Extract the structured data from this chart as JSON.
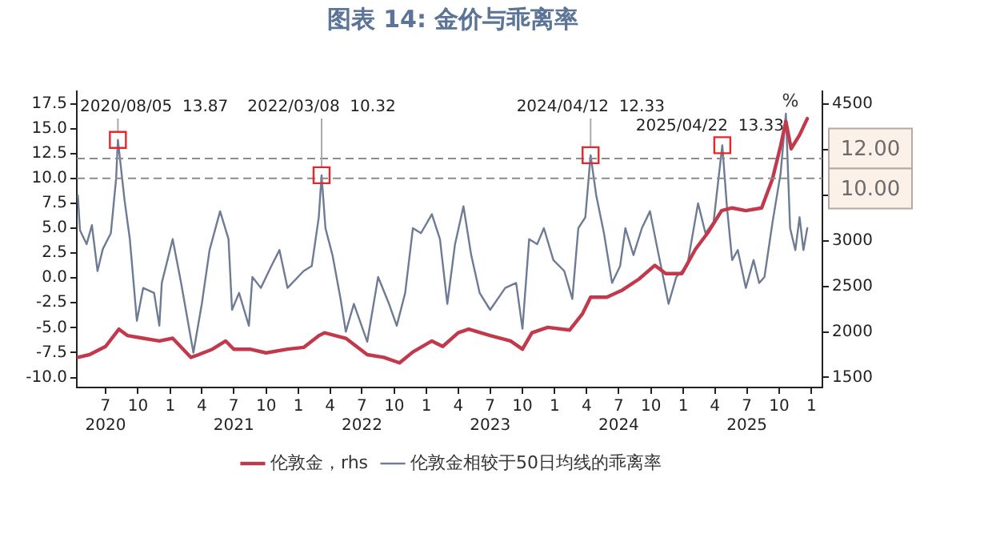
{
  "chart_data": {
    "type": "line",
    "title": "图表 14: 金价与乖离率",
    "xlim": [
      "2020-04-10",
      "2026-02-01"
    ],
    "xticks": [
      {
        "value": "2020-07",
        "label": "7\n2020"
      },
      {
        "value": "2020-10",
        "label": "10"
      },
      {
        "value": "2021-01",
        "label": "1"
      },
      {
        "value": "2021-04",
        "label": "4"
      },
      {
        "value": "2021-07",
        "label": "7\n2021"
      },
      {
        "value": "2021-10",
        "label": "10"
      },
      {
        "value": "2022-01",
        "label": "1"
      },
      {
        "value": "2022-04",
        "label": "4"
      },
      {
        "value": "2022-07",
        "label": "7\n2022"
      },
      {
        "value": "2022-10",
        "label": "10"
      },
      {
        "value": "2023-01",
        "label": "1"
      },
      {
        "value": "2023-04",
        "label": "4"
      },
      {
        "value": "2023-07",
        "label": "7\n2023"
      },
      {
        "value": "2023-10",
        "label": "10"
      },
      {
        "value": "2024-01",
        "label": "1"
      },
      {
        "value": "2024-04",
        "label": "4"
      },
      {
        "value": "2024-07",
        "label": "7\n2024"
      },
      {
        "value": "2024-10",
        "label": "10"
      },
      {
        "value": "2025-01",
        "label": "1"
      },
      {
        "value": "2025-04",
        "label": "4"
      },
      {
        "value": "2025-07",
        "label": "7\n2025"
      },
      {
        "value": "2025-10",
        "label": "10"
      },
      {
        "value": "2026-01",
        "label": "1"
      }
    ],
    "ylim": [
      -11,
      18.75
    ],
    "yticks": [
      {
        "value": -10,
        "label": "-10.0"
      },
      {
        "value": -7.5,
        "label": "-7.5"
      },
      {
        "value": -5,
        "label": "-5.0"
      },
      {
        "value": -2.5,
        "label": "-2.5"
      },
      {
        "value": 0,
        "label": "0.0"
      },
      {
        "value": 2.5,
        "label": "2.5"
      },
      {
        "value": 5,
        "label": "5.0"
      },
      {
        "value": 7.5,
        "label": "7.5"
      },
      {
        "value": 10,
        "label": "10.0"
      },
      {
        "value": 12.5,
        "label": "12.5"
      },
      {
        "value": 15,
        "label": "15.0"
      },
      {
        "value": 17.5,
        "label": "17.5"
      }
    ],
    "y2lim": [
      1390,
      4640
    ],
    "y2ticks": [
      1500,
      2000,
      2500,
      3000,
      {
        "value": 3500,
        "label": null
      },
      {
        "value": 4000,
        "label": null
      },
      4500
    ],
    "grid": false,
    "legend": "bottom",
    "marker": "none",
    "series": [
      {
        "name": "伦敦金，rhs",
        "color": "#c2394c",
        "axis": "y2",
        "x": [
          "2020-04-13",
          "2020-05-16",
          "2020-07-01",
          "2020-08-08",
          "2020-09-01",
          "2020-10-16",
          "2020-12-01",
          "2021-01-08",
          "2021-03-01",
          "2021-03-23",
          "2021-05-01",
          "2021-06-08",
          "2021-07-01",
          "2021-08-16",
          "2021-10-01",
          "2021-12-01",
          "2022-01-16",
          "2022-03-01",
          "2022-03-16",
          "2022-05-16",
          "2022-07-16",
          "2022-09-01",
          "2022-10-16",
          "2022-11-23",
          "2023-01-16",
          "2023-02-16",
          "2023-04-01",
          "2023-05-01",
          "2023-07-01",
          "2023-08-28",
          "2023-10-01",
          "2023-10-28",
          "2023-12-12",
          "2024-02-12",
          "2024-03-20",
          "2024-04-12",
          "2024-05-28",
          "2024-07-12",
          "2024-08-28",
          "2024-10-12",
          "2024-11-12",
          "2024-12-28",
          "2025-02-05",
          "2025-03-12",
          "2025-04-20",
          "2025-05-20",
          "2025-06-28",
          "2025-08-12",
          "2025-09-12",
          "2025-10-05",
          "2025-10-20",
          "2025-11-04",
          "2025-11-28",
          "2025-12-20"
        ],
        "values": [
          1720,
          1750,
          1840,
          2030,
          1960,
          1930,
          1900,
          1930,
          1720,
          1750,
          1810,
          1900,
          1810,
          1810,
          1770,
          1810,
          1830,
          1960,
          1990,
          1930,
          1750,
          1720,
          1660,
          1780,
          1900,
          1840,
          1990,
          2030,
          1960,
          1900,
          1810,
          1990,
          2050,
          2020,
          2200,
          2380,
          2380,
          2460,
          2580,
          2730,
          2640,
          2640,
          2910,
          3090,
          3330,
          3360,
          3330,
          3360,
          3680,
          4040,
          4310,
          4010,
          4160,
          4340
        ]
      },
      {
        "name": "伦敦金相较于50日均线的乖离率",
        "color": "#6e7b95",
        "x": [
          "2020-04-13",
          "2020-04-19",
          "2020-05-08",
          "2020-05-23",
          "2020-06-08",
          "2020-06-23",
          "2020-07-16",
          "2020-07-31",
          "2020-08-05",
          "2020-08-24",
          "2020-09-08",
          "2020-09-28",
          "2020-10-16",
          "2020-11-16",
          "2020-12-01",
          "2020-12-08",
          "2021-01-08",
          "2021-02-01",
          "2021-03-08",
          "2021-04-01",
          "2021-04-23",
          "2021-05-23",
          "2021-06-16",
          "2021-06-26",
          "2021-07-16",
          "2021-08-13",
          "2021-08-23",
          "2021-09-16",
          "2021-10-16",
          "2021-11-08",
          "2021-12-01",
          "2022-01-16",
          "2022-02-08",
          "2022-02-28",
          "2022-03-08",
          "2022-03-19",
          "2022-04-08",
          "2022-05-01",
          "2022-05-16",
          "2022-06-08",
          "2022-07-16",
          "2022-08-16",
          "2022-09-16",
          "2022-10-08",
          "2022-11-01",
          "2022-11-23",
          "2022-12-16",
          "2023-01-16",
          "2023-02-08",
          "2023-03-01",
          "2023-03-23",
          "2023-04-16",
          "2023-05-08",
          "2023-06-01",
          "2023-07-01",
          "2023-08-13",
          "2023-09-13",
          "2023-10-01",
          "2023-10-20",
          "2023-11-12",
          "2023-12-01",
          "2023-12-28",
          "2024-01-28",
          "2024-02-20",
          "2024-03-08",
          "2024-03-28",
          "2024-04-12",
          "2024-04-28",
          "2024-05-20",
          "2024-06-12",
          "2024-07-05",
          "2024-07-20",
          "2024-08-12",
          "2024-09-05",
          "2024-09-28",
          "2024-10-20",
          "2024-11-20",
          "2024-12-12",
          "2025-01-12",
          "2025-02-12",
          "2025-03-05",
          "2025-03-28",
          "2025-04-22",
          "2025-05-05",
          "2025-05-20",
          "2025-06-05",
          "2025-06-28",
          "2025-07-20",
          "2025-08-05",
          "2025-08-20",
          "2025-09-12",
          "2025-10-05",
          "2025-10-20",
          "2025-11-01",
          "2025-11-16",
          "2025-11-28",
          "2025-12-09",
          "2025-12-20"
        ],
        "values": [
          8.3,
          4.8,
          3.4,
          5.3,
          0.7,
          2.9,
          4.5,
          10.0,
          13.87,
          7.8,
          3.9,
          -4.3,
          -1.0,
          -1.5,
          -4.8,
          -0.5,
          3.9,
          -0.5,
          -7.5,
          -2.6,
          2.8,
          6.7,
          3.9,
          -3.2,
          -1.5,
          -4.8,
          0.1,
          -1.0,
          1.2,
          2.8,
          -1.0,
          0.7,
          1.2,
          6.1,
          10.32,
          5.0,
          2.3,
          -2.1,
          -5.4,
          -2.6,
          -6.4,
          0.1,
          -2.6,
          -4.8,
          -1.5,
          5.0,
          4.5,
          6.4,
          3.9,
          -2.6,
          3.4,
          7.2,
          2.3,
          -1.5,
          -3.2,
          -1.0,
          -0.5,
          -5.1,
          3.9,
          3.4,
          5.0,
          1.8,
          0.7,
          -2.1,
          5.0,
          6.1,
          12.33,
          8.3,
          4.5,
          -0.5,
          1.2,
          5.0,
          2.3,
          5.0,
          6.7,
          2.8,
          -2.6,
          0.1,
          1.2,
          7.5,
          4.5,
          5.6,
          13.33,
          7.2,
          1.8,
          2.8,
          -1.0,
          1.8,
          -0.5,
          0.1,
          5.6,
          10.5,
          16.5,
          5.0,
          2.8,
          6.1,
          2.8,
          5.0
        ]
      }
    ],
    "ref_lines": [
      {
        "axis": "y",
        "value": 12,
        "label": "12.00",
        "color": "#8c8c8c",
        "line_style": "dashed"
      },
      {
        "axis": "y",
        "value": 10,
        "label": "10.00",
        "color": "#8c8c8c",
        "line_style": "dashed"
      }
    ],
    "annotations": [
      "%",
      {
        "text": "2020/08/05  13.87",
        "x": "2020-08-05",
        "y": 13.87
      },
      {
        "text": "2022/03/08  10.32",
        "x": "2022-03-08",
        "y": 10.32
      },
      {
        "text": "2024/04/12  12.33",
        "x": "2024-04-12",
        "y": 12.33
      },
      {
        "text": "2025/04/22  13.33",
        "x": "2025-04-22",
        "y": 13.33
      }
    ]
  }
}
